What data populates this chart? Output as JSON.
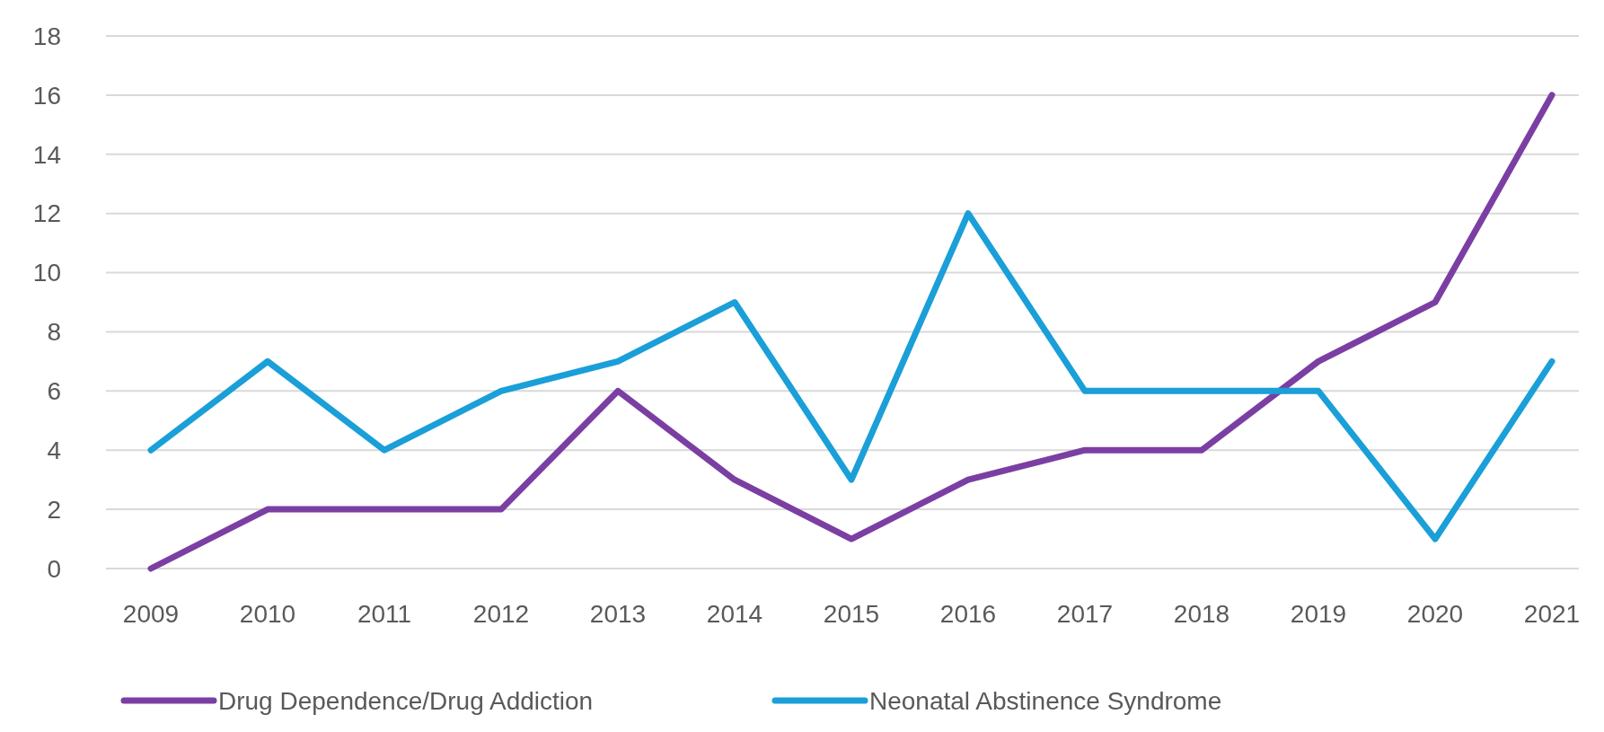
{
  "chart_data": {
    "type": "line",
    "categories": [
      "2009",
      "2010",
      "2011",
      "2012",
      "2013",
      "2014",
      "2015",
      "2016",
      "2017",
      "2018",
      "2019",
      "2020",
      "2021"
    ],
    "series": [
      {
        "name": "Drug Dependence/Drug Addiction",
        "color": "#7b3fa3",
        "values": [
          0,
          2,
          2,
          2,
          6,
          3,
          1,
          3,
          4,
          4,
          7,
          9,
          16
        ]
      },
      {
        "name": "Neonatal Abstinence Syndrome",
        "color": "#1a9fd8",
        "values": [
          4,
          7,
          4,
          6,
          7,
          9,
          3,
          12,
          6,
          6,
          6,
          1,
          7
        ]
      }
    ],
    "ylim": [
      0,
      18
    ],
    "yticks": [
      0,
      2,
      4,
      6,
      8,
      10,
      12,
      14,
      16,
      18
    ],
    "grid": "y",
    "legend": "bottom",
    "marker": "none",
    "line_style": "solid"
  }
}
